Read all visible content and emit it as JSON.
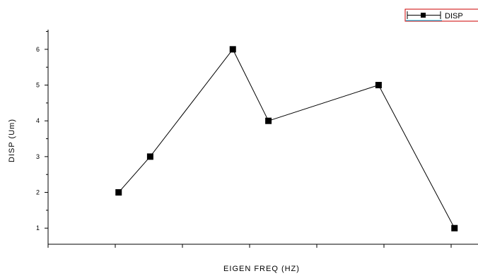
{
  "chart_data": {
    "type": "line",
    "title": "",
    "xlabel": "EIGEN FREQ (HZ)",
    "ylabel": "DISP (Um)",
    "ylim": [
      0.55,
      6.55
    ],
    "yticks": [
      "1",
      "2",
      "3",
      "4",
      "5",
      "6"
    ],
    "xlim": [
      -1,
      5.4
    ],
    "xticks_count": 7,
    "grid": false,
    "legend_position": "top-right",
    "series": [
      {
        "name": "DISP",
        "color": "#000000",
        "marker": "square",
        "x": [
          0.05,
          0.52,
          1.75,
          2.28,
          3.92,
          5.05
        ],
        "y": [
          2,
          3,
          6,
          4,
          5,
          1
        ]
      }
    ],
    "legend_colors": {
      "frame": "#cc0000",
      "accent": "#00ccff"
    }
  }
}
